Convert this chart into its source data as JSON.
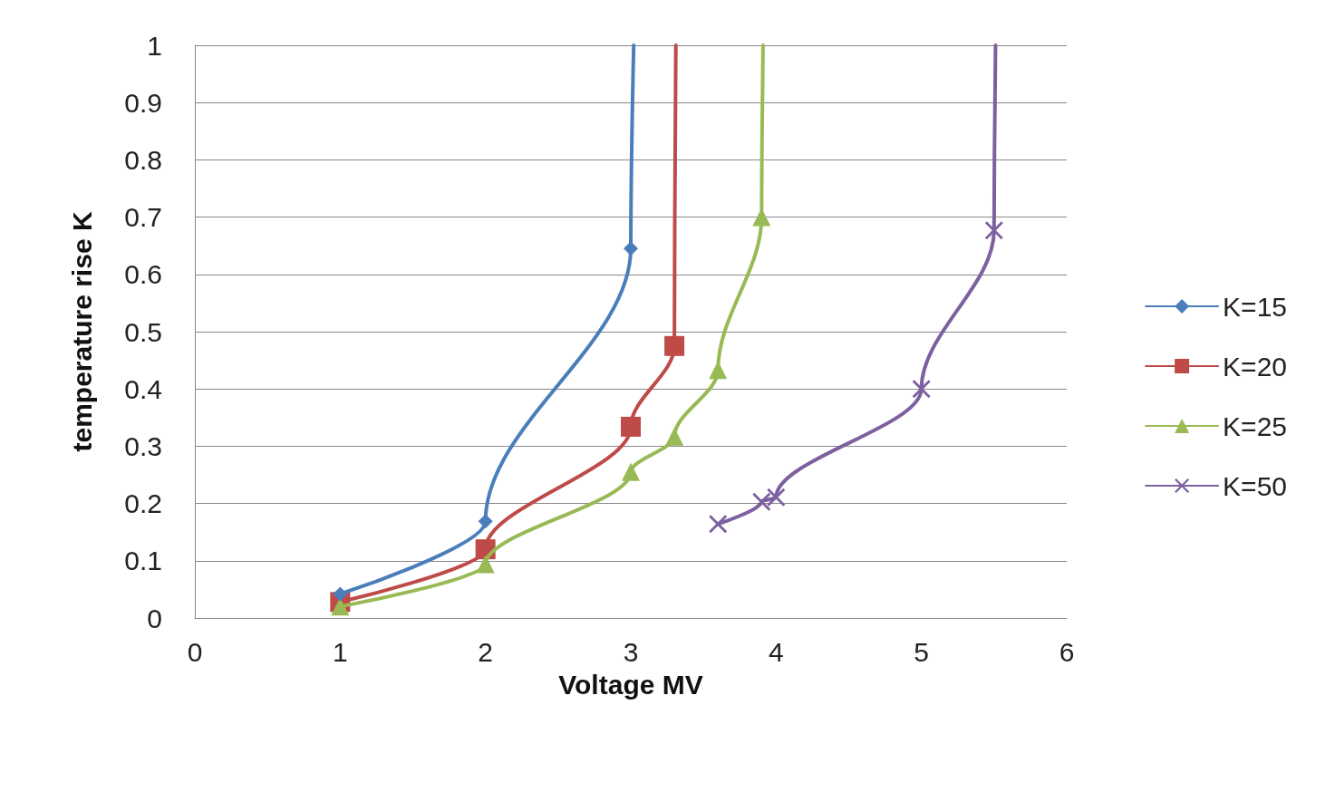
{
  "chart_data": {
    "type": "line",
    "xlabel": "Voltage MV",
    "ylabel": "temperature rise K",
    "xlim": [
      0,
      6
    ],
    "xticks": [
      0,
      1,
      2,
      3,
      4,
      5,
      6
    ],
    "ylim": [
      0,
      1
    ],
    "yticks": [
      0,
      0.1,
      0.2,
      0.3,
      0.4,
      0.5,
      0.6,
      0.7,
      0.8,
      0.9,
      1
    ],
    "grid": "y",
    "legend": "right",
    "line_style": "solid",
    "series": [
      {
        "name": "K=15",
        "color": "#4a7ebb",
        "marker": "diamond",
        "x": [
          1,
          2,
          3,
          3.02
        ],
        "values": [
          0.042,
          0.169,
          0.645,
          1
        ]
      },
      {
        "name": "K=20",
        "color": "#be4b48",
        "marker": "square",
        "x": [
          1,
          2,
          3,
          3.3,
          3.31
        ],
        "values": [
          0.028,
          0.12,
          0.334,
          0.475,
          1
        ]
      },
      {
        "name": "K=25",
        "color": "#98b954",
        "marker": "triangle",
        "x": [
          1,
          2,
          3,
          3.3,
          3.6,
          3.9,
          3.91
        ],
        "values": [
          0.02,
          0.094,
          0.255,
          0.317,
          0.433,
          0.7,
          1
        ]
      },
      {
        "name": "K=50",
        "color": "#7d60a0",
        "marker": "cross",
        "x": [
          3.6,
          3.9,
          4,
          5,
          5.5,
          5.51
        ],
        "values": [
          0.164,
          0.203,
          0.211,
          0.4,
          0.677,
          1
        ]
      }
    ]
  }
}
